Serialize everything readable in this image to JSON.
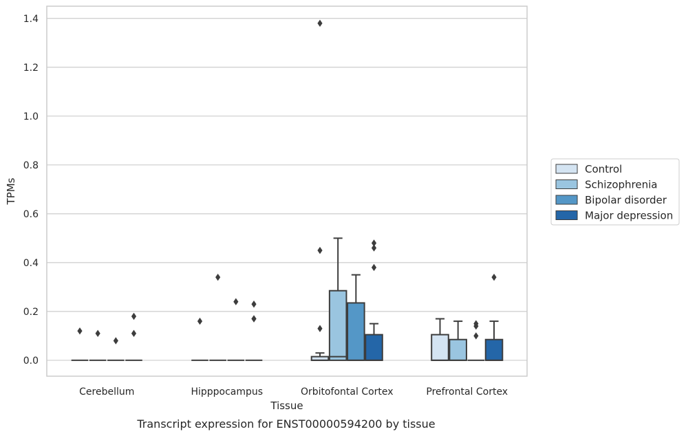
{
  "chart_data": {
    "type": "box",
    "xlabel": "Tissue",
    "ylabel": "TPMs",
    "ylim": [
      -0.065,
      1.45
    ],
    "yticks": [
      0.0,
      0.2,
      0.4,
      0.6,
      0.8,
      1.0,
      1.2,
      1.4
    ],
    "ytick_labels": [
      "0.0",
      "0.2",
      "0.4",
      "0.6",
      "0.8",
      "1.0",
      "1.2",
      "1.4"
    ],
    "grid": true,
    "legend_position": "right",
    "categories": [
      "Cerebellum",
      "Hipppocampus",
      "Orbitofontal Cortex",
      "Prefrontal Cortex"
    ],
    "series": [
      {
        "name": "Control",
        "color": "#d4e4f2",
        "boxes": [
          {
            "q1": 0,
            "median": 0,
            "q3": 0,
            "whisker_low": 0,
            "whisker_high": 0,
            "outliers": [
              0.12
            ]
          },
          {
            "q1": 0,
            "median": 0,
            "q3": 0,
            "whisker_low": 0,
            "whisker_high": 0,
            "outliers": [
              0.16
            ]
          },
          {
            "q1": 0,
            "median": 0,
            "q3": 0.015,
            "whisker_low": 0,
            "whisker_high": 0.03,
            "outliers": [
              0.13,
              0.45,
              1.38
            ]
          },
          {
            "q1": 0,
            "median": 0,
            "q3": 0.105,
            "whisker_low": 0,
            "whisker_high": 0.17,
            "outliers": []
          }
        ]
      },
      {
        "name": "Schizophrenia",
        "color": "#9ac5e0",
        "boxes": [
          {
            "q1": 0,
            "median": 0,
            "q3": 0,
            "whisker_low": 0,
            "whisker_high": 0,
            "outliers": [
              0.11
            ]
          },
          {
            "q1": 0,
            "median": 0,
            "q3": 0,
            "whisker_low": 0,
            "whisker_high": 0,
            "outliers": [
              0.34
            ]
          },
          {
            "q1": 0,
            "median": 0.015,
            "q3": 0.285,
            "whisker_low": 0,
            "whisker_high": 0.5,
            "outliers": []
          },
          {
            "q1": 0,
            "median": 0,
            "q3": 0.085,
            "whisker_low": 0,
            "whisker_high": 0.16,
            "outliers": []
          }
        ]
      },
      {
        "name": "Bipolar disorder",
        "color": "#5497c7",
        "boxes": [
          {
            "q1": 0,
            "median": 0,
            "q3": 0,
            "whisker_low": 0,
            "whisker_high": 0,
            "outliers": [
              0.08
            ]
          },
          {
            "q1": 0,
            "median": 0,
            "q3": 0,
            "whisker_low": 0,
            "whisker_high": 0,
            "outliers": [
              0.24
            ]
          },
          {
            "q1": 0,
            "median": 0,
            "q3": 0.235,
            "whisker_low": 0,
            "whisker_high": 0.35,
            "outliers": []
          },
          {
            "q1": 0,
            "median": 0,
            "q3": 0,
            "whisker_low": 0,
            "whisker_high": 0,
            "outliers": [
              0.1,
              0.14,
              0.15
            ]
          }
        ]
      },
      {
        "name": "Major depression",
        "color": "#2466a8",
        "boxes": [
          {
            "q1": 0,
            "median": 0,
            "q3": 0,
            "whisker_low": 0,
            "whisker_high": 0,
            "outliers": [
              0.11,
              0.18
            ]
          },
          {
            "q1": 0,
            "median": 0,
            "q3": 0,
            "whisker_low": 0,
            "whisker_high": 0,
            "outliers": [
              0.17,
              0.17,
              0.23
            ]
          },
          {
            "q1": 0,
            "median": 0,
            "q3": 0.105,
            "whisker_low": 0,
            "whisker_high": 0.15,
            "outliers": [
              0.38,
              0.46,
              0.48
            ]
          },
          {
            "q1": 0,
            "median": 0,
            "q3": 0.085,
            "whisker_low": 0,
            "whisker_high": 0.16,
            "outliers": [
              0.34
            ]
          }
        ]
      }
    ],
    "caption": "Transcript expression for ENST00000594200 by tissue"
  }
}
